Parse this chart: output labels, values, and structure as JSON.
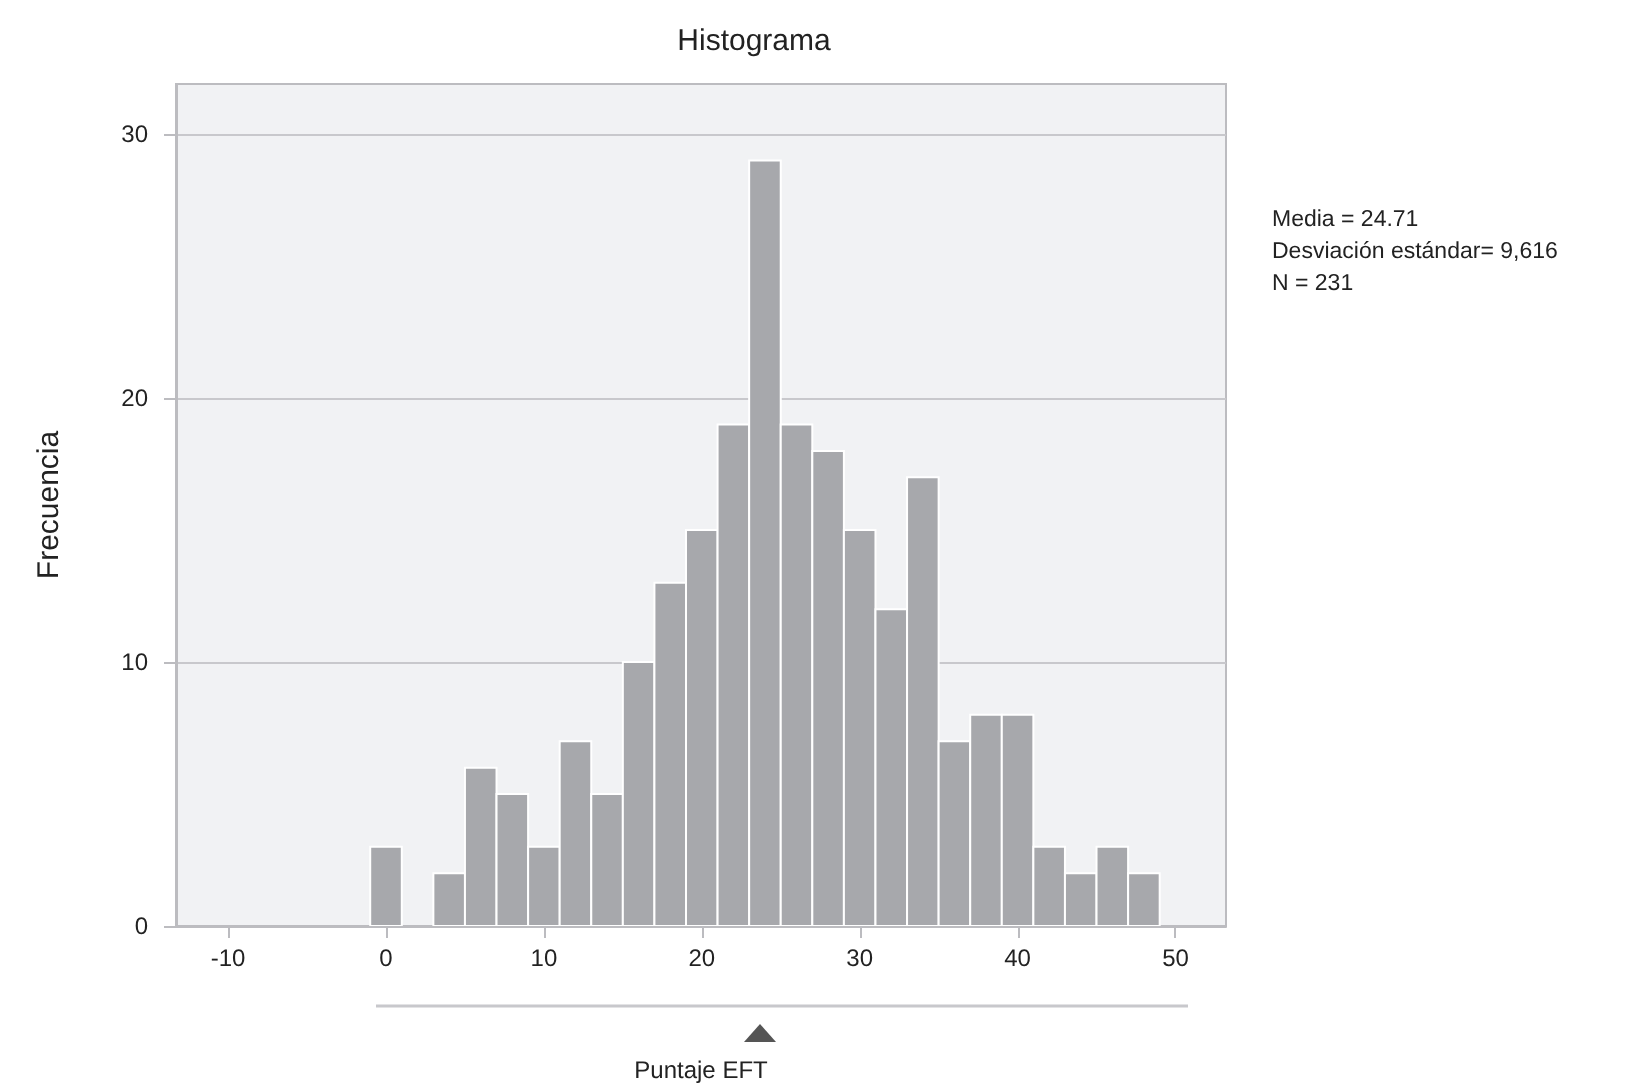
{
  "chart_data": {
    "type": "histogram",
    "title": "Histograma",
    "xlabel": "Puntaje EFT",
    "ylabel": "Frecuencia",
    "bins": [
      -1,
      1,
      3,
      5,
      7,
      9,
      11,
      13,
      15,
      17,
      19,
      21,
      23,
      25,
      27,
      29,
      31,
      33,
      35,
      37,
      39,
      41,
      43,
      45,
      47,
      49
    ],
    "values": [
      3,
      0,
      2,
      6,
      5,
      3,
      7,
      5,
      10,
      13,
      15,
      19,
      29,
      19,
      18,
      15,
      12,
      17,
      7,
      8,
      8,
      3,
      2,
      3,
      2
    ],
    "color": "#a7a8ac",
    "xlim": [
      -13.3,
      53.2
    ],
    "xticks": [
      -10,
      0,
      10,
      20,
      30,
      40,
      50
    ],
    "ylim": [
      0,
      31.9
    ],
    "yticks": [
      0,
      10,
      20,
      30
    ],
    "grid": "y",
    "annotations": [
      "Media = 24.71",
      "Desviación estándar= 9,616",
      "N = 231"
    ]
  }
}
